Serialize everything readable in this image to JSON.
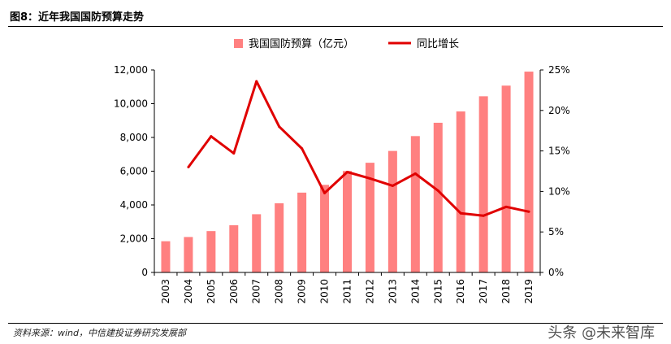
{
  "figure_title": "图8：近年我国国防预算走势",
  "source_note": "资料来源：wind，中信建投证券研究发展部",
  "watermark": "头条 @未来智库",
  "colors": {
    "bar": "#FF8080",
    "line": "#E00000",
    "axis": "#000000"
  },
  "chart_data": {
    "type": "bar+line",
    "categories": [
      "2003",
      "2004",
      "2005",
      "2006",
      "2007",
      "2008",
      "2009",
      "2010",
      "2011",
      "2012",
      "2013",
      "2014",
      "2015",
      "2016",
      "2017",
      "2018",
      "2019"
    ],
    "series": [
      {
        "name": "我国国防预算（亿元）",
        "type": "bar",
        "axis": "left",
        "values": [
          1850,
          2100,
          2450,
          2800,
          3450,
          4100,
          4730,
          5190,
          6010,
          6500,
          7200,
          8080,
          8870,
          9540,
          10440,
          11070,
          11900
        ]
      },
      {
        "name": "同比增长",
        "type": "line",
        "axis": "right",
        "values": [
          null,
          13.0,
          16.8,
          14.7,
          23.6,
          18.0,
          15.3,
          9.8,
          12.4,
          11.6,
          10.7,
          12.2,
          10.1,
          7.3,
          7.0,
          8.1,
          7.5
        ]
      }
    ],
    "y_left": {
      "ylim": [
        0,
        12000
      ],
      "ticks": [
        "0",
        "2,000",
        "4,000",
        "6,000",
        "8,000",
        "10,000",
        "12,000"
      ]
    },
    "y_right": {
      "ylim": [
        0,
        25
      ],
      "ticks": [
        "0%",
        "5%",
        "10%",
        "15%",
        "20%",
        "25%"
      ]
    },
    "legend_placement": "top-center",
    "grid": false
  }
}
